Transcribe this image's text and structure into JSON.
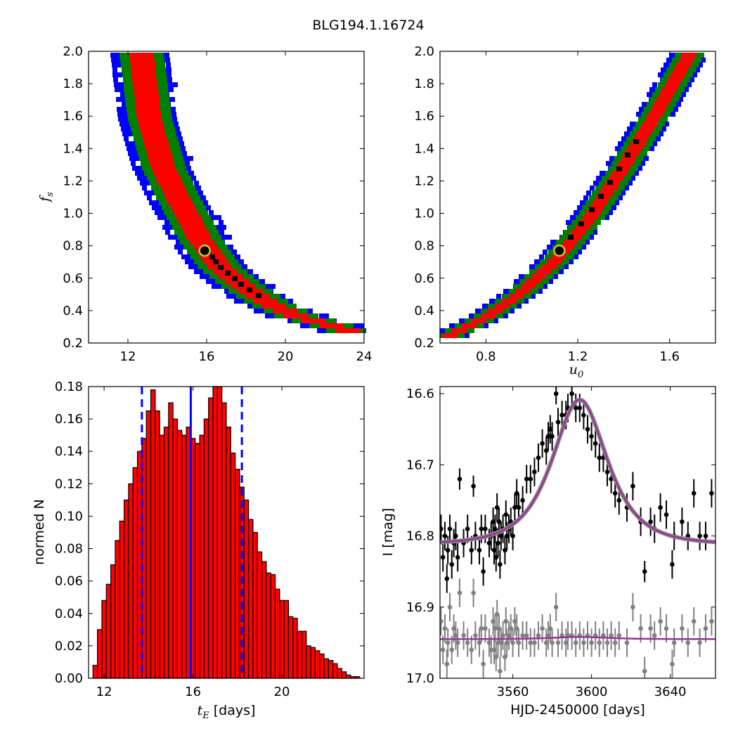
{
  "figure": {
    "title": "BLG194.1.16724"
  },
  "chart_data": [
    {
      "type": "heatmap",
      "id": "tE_vs_fs",
      "xlabel": "",
      "ylabel_main": "f",
      "ylabel_sub": "s",
      "xlim": [
        10,
        24
      ],
      "ylim": [
        0.2,
        2.0
      ],
      "xticks": [
        "12",
        "16",
        "20",
        "24"
      ],
      "yticks": [
        "0.2",
        "0.4",
        "0.6",
        "0.8",
        "1.0",
        "1.2",
        "1.4",
        "1.6",
        "1.8",
        "2.0"
      ],
      "ridge": [
        [
          12.6,
          2.0
        ],
        [
          13.0,
          1.6
        ],
        [
          13.7,
          1.3
        ],
        [
          14.5,
          1.1
        ],
        [
          15.6,
          0.85
        ],
        [
          16.6,
          0.68
        ],
        [
          17.8,
          0.56
        ],
        [
          19.2,
          0.45
        ],
        [
          20.5,
          0.38
        ],
        [
          22.0,
          0.33
        ],
        [
          23.7,
          0.27
        ]
      ],
      "levels": [
        {
          "name": "blue",
          "color": "#0000ff",
          "halfwidth": 1.25
        },
        {
          "name": "green",
          "color": "#008000",
          "halfwidth": 0.85
        },
        {
          "name": "red",
          "color": "#ff0000",
          "halfwidth": 0.45
        }
      ],
      "best_fit": {
        "x": 15.9,
        "y": 0.77
      }
    },
    {
      "type": "heatmap",
      "id": "u0_vs_fs",
      "xlabel_main": "u",
      "xlabel_sub": "0",
      "xlim": [
        0.6,
        1.8
      ],
      "ylim": [
        0.2,
        2.0
      ],
      "xticks": [
        "0.8",
        "1.2",
        "1.6"
      ],
      "yticks": [
        "0.2",
        "0.4",
        "0.6",
        "0.8",
        "1.0",
        "1.2",
        "1.4",
        "1.6",
        "1.8",
        "2.0"
      ],
      "ridge": [
        [
          0.62,
          0.25
        ],
        [
          0.8,
          0.38
        ],
        [
          0.95,
          0.53
        ],
        [
          1.1,
          0.73
        ],
        [
          1.25,
          1.0
        ],
        [
          1.4,
          1.32
        ],
        [
          1.52,
          1.6
        ],
        [
          1.68,
          2.0
        ]
      ],
      "levels": [
        {
          "name": "blue",
          "color": "#0000ff",
          "halfwidth": 0.065
        },
        {
          "name": "green",
          "color": "#008000",
          "halfwidth": 0.045
        },
        {
          "name": "red",
          "color": "#ff0000",
          "halfwidth": 0.02
        }
      ],
      "best_fit": {
        "x": 1.12,
        "y": 0.77
      }
    },
    {
      "type": "bar",
      "id": "tE_histogram",
      "xlabel_main": "t",
      "xlabel_sub": "E",
      "xlabel_rest": " [days]",
      "ylabel": "normed N",
      "xlim": [
        11.3,
        23.7
      ],
      "ylim": [
        0.0,
        0.18
      ],
      "xticks": [
        "12",
        "16",
        "20"
      ],
      "yticks": [
        "0.00",
        "0.02",
        "0.04",
        "0.06",
        "0.08",
        "0.10",
        "0.12",
        "0.14",
        "0.16",
        "0.18"
      ],
      "bin_start": 11.5,
      "bin_width": 0.2,
      "values": [
        0.008,
        0.03,
        0.048,
        0.058,
        0.07,
        0.085,
        0.097,
        0.11,
        0.12,
        0.13,
        0.14,
        0.148,
        0.165,
        0.178,
        0.165,
        0.15,
        0.155,
        0.17,
        0.16,
        0.153,
        0.15,
        0.155,
        0.148,
        0.145,
        0.15,
        0.16,
        0.173,
        0.18,
        0.183,
        0.17,
        0.155,
        0.139,
        0.129,
        0.118,
        0.11,
        0.098,
        0.09,
        0.078,
        0.072,
        0.065,
        0.064,
        0.055,
        0.048,
        0.048,
        0.038,
        0.037,
        0.029,
        0.029,
        0.02,
        0.019,
        0.017,
        0.015,
        0.012,
        0.011,
        0.009,
        0.006,
        0.004,
        0.002,
        0.001,
        0.001
      ],
      "bar_color": "#ff0000",
      "median": 15.9,
      "lower": 13.7,
      "upper": 18.2,
      "line_color": "#0000ff"
    },
    {
      "type": "scatter",
      "id": "light_curve",
      "xlabel": "HJD-2450000 [days]",
      "ylabel": "I [mag]",
      "xlim": [
        3523,
        3663
      ],
      "ylim": [
        17.0,
        16.59
      ],
      "xticks": [
        "3560",
        "3600",
        "3640"
      ],
      "yticks": [
        "16.6",
        "16.7",
        "16.8",
        "16.9",
        "17.0"
      ],
      "model": {
        "t0": 3594,
        "tE": 15.9,
        "u0": 1.12,
        "fs": 0.77,
        "base": 16.812,
        "resid_base": 16.945
      },
      "model_color": "#993399",
      "data_color": "#000000",
      "residual_color": "#808080",
      "data_points": [
        [
          3523.5,
          16.79,
          0.02
        ],
        [
          3524.5,
          16.83,
          0.02
        ],
        [
          3525.5,
          16.8,
          0.02
        ],
        [
          3526.5,
          16.86,
          0.02
        ],
        [
          3527,
          16.82,
          0.02
        ],
        [
          3528,
          16.79,
          0.02
        ],
        [
          3529,
          16.84,
          0.02
        ],
        [
          3530,
          16.81,
          0.02
        ],
        [
          3531,
          16.8,
          0.02
        ],
        [
          3532,
          16.83,
          0.02
        ],
        [
          3533,
          16.72,
          0.015
        ],
        [
          3535,
          16.81,
          0.02
        ],
        [
          3537,
          16.79,
          0.02
        ],
        [
          3539,
          16.82,
          0.02
        ],
        [
          3540,
          16.73,
          0.015
        ],
        [
          3541,
          16.8,
          0.02
        ],
        [
          3543,
          16.82,
          0.02
        ],
        [
          3544,
          16.79,
          0.02
        ],
        [
          3545,
          16.85,
          0.02
        ],
        [
          3546,
          16.79,
          0.02
        ],
        [
          3548,
          16.81,
          0.02
        ],
        [
          3549,
          16.8,
          0.02
        ],
        [
          3550,
          16.78,
          0.02
        ],
        [
          3550.5,
          16.82,
          0.02
        ],
        [
          3551,
          16.79,
          0.02
        ],
        [
          3551.5,
          16.83,
          0.02
        ],
        [
          3552,
          16.76,
          0.02
        ],
        [
          3552.5,
          16.81,
          0.02
        ],
        [
          3553,
          16.78,
          0.02
        ],
        [
          3553.5,
          16.84,
          0.02
        ],
        [
          3554,
          16.8,
          0.02
        ],
        [
          3555,
          16.79,
          0.02
        ],
        [
          3556,
          16.82,
          0.02
        ],
        [
          3556.5,
          16.77,
          0.02
        ],
        [
          3557,
          16.8,
          0.02
        ],
        [
          3558,
          16.79,
          0.02
        ],
        [
          3559,
          16.78,
          0.02
        ],
        [
          3560,
          16.8,
          0.02
        ],
        [
          3561,
          16.76,
          0.02
        ],
        [
          3562,
          16.74,
          0.02
        ],
        [
          3563,
          16.76,
          0.02
        ],
        [
          3565,
          16.75,
          0.02
        ],
        [
          3567,
          16.72,
          0.02
        ],
        [
          3569,
          16.72,
          0.02
        ],
        [
          3571,
          16.71,
          0.02
        ],
        [
          3573,
          16.69,
          0.02
        ],
        [
          3575,
          16.67,
          0.02
        ],
        [
          3577,
          16.68,
          0.02
        ],
        [
          3578,
          16.66,
          0.02
        ],
        [
          3579,
          16.65,
          0.02
        ],
        [
          3580,
          16.66,
          0.02
        ],
        [
          3582,
          16.6,
          0.015
        ],
        [
          3583,
          16.64,
          0.02
        ],
        [
          3585,
          16.63,
          0.02
        ],
        [
          3587,
          16.63,
          0.02
        ],
        [
          3588,
          16.62,
          0.02
        ],
        [
          3590,
          16.6,
          0.015
        ],
        [
          3592,
          16.62,
          0.02
        ],
        [
          3594,
          16.62,
          0.02
        ],
        [
          3596,
          16.63,
          0.02
        ],
        [
          3598,
          16.65,
          0.02
        ],
        [
          3600,
          16.66,
          0.02
        ],
        [
          3602,
          16.67,
          0.02
        ],
        [
          3604,
          16.69,
          0.02
        ],
        [
          3606,
          16.69,
          0.02
        ],
        [
          3608,
          16.71,
          0.02
        ],
        [
          3610,
          16.72,
          0.02
        ],
        [
          3612,
          16.74,
          0.02
        ],
        [
          3614,
          16.75,
          0.02
        ],
        [
          3618,
          16.76,
          0.02
        ],
        [
          3621,
          16.73,
          0.02
        ],
        [
          3625,
          16.78,
          0.02
        ],
        [
          3627,
          16.85,
          0.015
        ],
        [
          3630,
          16.78,
          0.02
        ],
        [
          3632,
          16.79,
          0.02
        ],
        [
          3635,
          16.76,
          0.02
        ],
        [
          3638,
          16.77,
          0.02
        ],
        [
          3641,
          16.84,
          0.02
        ],
        [
          3642,
          16.8,
          0.02
        ],
        [
          3646,
          16.78,
          0.02
        ],
        [
          3649,
          16.8,
          0.02
        ],
        [
          3652,
          16.74,
          0.02
        ],
        [
          3655,
          16.8,
          0.02
        ],
        [
          3658,
          16.8,
          0.02
        ],
        [
          3661,
          16.74,
          0.02
        ]
      ],
      "residual_points": [
        [
          3523.5,
          16.92,
          0.02
        ],
        [
          3524.5,
          16.96,
          0.02
        ],
        [
          3525.5,
          16.93,
          0.02
        ],
        [
          3526.5,
          16.98,
          0.02
        ],
        [
          3527,
          16.95,
          0.02
        ],
        [
          3528,
          16.9,
          0.02
        ],
        [
          3529,
          16.96,
          0.02
        ],
        [
          3530,
          16.93,
          0.02
        ],
        [
          3531,
          16.94,
          0.02
        ],
        [
          3532,
          16.95,
          0.02
        ],
        [
          3533,
          16.88,
          0.02
        ],
        [
          3535,
          16.94,
          0.02
        ],
        [
          3537,
          16.95,
          0.02
        ],
        [
          3539,
          16.96,
          0.02
        ],
        [
          3540,
          16.88,
          0.02
        ],
        [
          3541,
          16.94,
          0.02
        ],
        [
          3543,
          16.95,
          0.02
        ],
        [
          3544,
          16.93,
          0.02
        ],
        [
          3545,
          16.98,
          0.02
        ],
        [
          3546,
          16.93,
          0.02
        ],
        [
          3548,
          16.95,
          0.02
        ],
        [
          3549,
          16.96,
          0.02
        ],
        [
          3550,
          16.92,
          0.02
        ],
        [
          3550.5,
          16.96,
          0.02
        ],
        [
          3551,
          16.93,
          0.02
        ],
        [
          3551.5,
          16.97,
          0.02
        ],
        [
          3552,
          16.91,
          0.02
        ],
        [
          3552.5,
          16.95,
          0.02
        ],
        [
          3553,
          16.93,
          0.02
        ],
        [
          3553.5,
          16.99,
          0.02
        ],
        [
          3554,
          16.95,
          0.02
        ],
        [
          3555,
          16.94,
          0.02
        ],
        [
          3556,
          16.97,
          0.02
        ],
        [
          3556.5,
          16.92,
          0.02
        ],
        [
          3557,
          16.95,
          0.02
        ],
        [
          3558,
          16.94,
          0.02
        ],
        [
          3559,
          16.93,
          0.02
        ],
        [
          3560,
          16.95,
          0.02
        ],
        [
          3561,
          16.92,
          0.02
        ],
        [
          3562,
          16.93,
          0.02
        ],
        [
          3563,
          16.95,
          0.02
        ],
        [
          3565,
          16.94,
          0.02
        ],
        [
          3567,
          16.94,
          0.02
        ],
        [
          3569,
          16.95,
          0.02
        ],
        [
          3571,
          16.95,
          0.02
        ],
        [
          3573,
          16.94,
          0.02
        ],
        [
          3575,
          16.93,
          0.02
        ],
        [
          3577,
          16.95,
          0.02
        ],
        [
          3578,
          16.94,
          0.02
        ],
        [
          3579,
          16.93,
          0.02
        ],
        [
          3580,
          16.95,
          0.02
        ],
        [
          3582,
          16.9,
          0.02
        ],
        [
          3583,
          16.95,
          0.02
        ],
        [
          3585,
          16.94,
          0.02
        ],
        [
          3587,
          16.95,
          0.02
        ],
        [
          3588,
          16.94,
          0.02
        ],
        [
          3590,
          16.94,
          0.02
        ],
        [
          3592,
          16.95,
          0.02
        ],
        [
          3594,
          16.94,
          0.02
        ],
        [
          3596,
          16.95,
          0.02
        ],
        [
          3598,
          16.94,
          0.02
        ],
        [
          3600,
          16.95,
          0.02
        ],
        [
          3602,
          16.94,
          0.02
        ],
        [
          3604,
          16.95,
          0.02
        ],
        [
          3606,
          16.94,
          0.02
        ],
        [
          3608,
          16.95,
          0.02
        ],
        [
          3610,
          16.94,
          0.02
        ],
        [
          3612,
          16.95,
          0.02
        ],
        [
          3614,
          16.94,
          0.02
        ],
        [
          3618,
          16.95,
          0.02
        ],
        [
          3621,
          16.9,
          0.02
        ],
        [
          3625,
          16.93,
          0.02
        ],
        [
          3627,
          16.99,
          0.02
        ],
        [
          3630,
          16.93,
          0.02
        ],
        [
          3632,
          16.94,
          0.02
        ],
        [
          3635,
          16.92,
          0.02
        ],
        [
          3638,
          16.93,
          0.02
        ],
        [
          3641,
          16.98,
          0.02
        ],
        [
          3642,
          16.95,
          0.02
        ],
        [
          3646,
          16.93,
          0.02
        ],
        [
          3649,
          16.95,
          0.02
        ],
        [
          3652,
          16.92,
          0.02
        ],
        [
          3655,
          16.95,
          0.02
        ],
        [
          3658,
          16.93,
          0.02
        ],
        [
          3661,
          16.92,
          0.02
        ]
      ]
    }
  ]
}
